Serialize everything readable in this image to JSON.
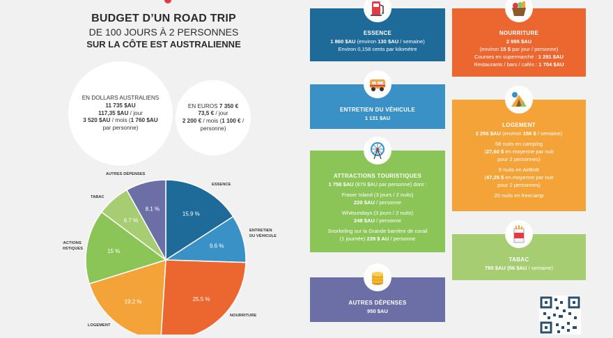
{
  "title": {
    "line1": "BUDGET D’UN ROAD TRIP",
    "line2": "DE 100 JOURS À 2 PERSONNES",
    "line3": "SUR LA CÔTE EST AUSTRALIENNE"
  },
  "aud_circle": {
    "heading": "EN DOLLARS AUSTRALIENS",
    "total": "11 735 $AU",
    "per_day_value": "117,35 $AU",
    "per_day_suffix": " / jour",
    "per_month_value": "3 520 $AU",
    "per_month_mid": " / mois (",
    "per_month_pp": "1 760 $AU",
    "per_person": "par personne)"
  },
  "eur_circle": {
    "heading": "EN EUROS",
    "total": "7 350 €",
    "per_day_value": "73,5 €",
    "per_day_suffix": " / jour",
    "per_month_value": "2 200 €",
    "per_month_mid": " / mois (",
    "per_month_pp": "1 100 €",
    "per_month_end": " /",
    "per_person": "personne)"
  },
  "chart_data": {
    "type": "pie",
    "categories": [
      "ESSENCE",
      "ENTRETIEN DU VÉHICULE",
      "NOURRITURE",
      "LOGEMENT",
      "ATTRACTIONS TOURISTIQUES",
      "TABAC",
      "AUTRES DÉPENSES"
    ],
    "values": [
      15.9,
      9.6,
      25.5,
      19.2,
      15,
      6.7,
      8.1
    ],
    "value_labels": [
      "15.9 %",
      "9.6 %",
      "25.5 %",
      "19.2 %",
      "15 %",
      "6.7 %",
      "8.1 %"
    ],
    "label_lines": [
      [
        "ESSENCE"
      ],
      [
        "ENTRETIEN",
        "DU VÉHICULE"
      ],
      [
        "NOURRITURE"
      ],
      [
        "LOGEMENT"
      ],
      [
        "ATTRACTIONS",
        "TOURISTIQUES"
      ],
      [
        "TABAC"
      ],
      [
        "AUTRES DÉPENSES"
      ]
    ],
    "colors": [
      "#1e6a99",
      "#3a91c6",
      "#ec6730",
      "#f4a338",
      "#8cc557",
      "#a6cd72",
      "#6b6fa6"
    ],
    "start": "top",
    "direction": "clockwise"
  },
  "cards": {
    "essence": {
      "title": "ESSENCE",
      "l1_a": "1 860 $AU",
      "l1_b": " (environ ",
      "l1_c": "130 $AU",
      "l1_d": " / semaine)",
      "l2": "Environ 0,158 cents par kilomètre"
    },
    "nourriture": {
      "title": "NOURRITURE",
      "l1": "2 995 $AU",
      "l2_a": "(environ ",
      "l2_b": "15 $",
      "l2_c": " par jour / personne)",
      "l3_a": "Courses en supermarché : ",
      "l3_b": "1 291 $AU",
      "l4_a": "Restaurants / bars / cafés : ",
      "l4_b": "1 704 $AU"
    },
    "entretien": {
      "title": "ENTRETIEN DU VÉHICULE",
      "l1": "1 131 $AU"
    },
    "logement": {
      "title": "LOGEMENT",
      "l1_a": "2 256 $AU",
      "l1_b": " (environ ",
      "l1_c": "156 $",
      "l1_d": " / semaine)",
      "l2": "68 nuits en camping",
      "l3_a": "(",
      "l3_b": "27,60 $",
      "l3_c": " en moyenne par nuit",
      "l4": "pour 2 personnes)",
      "l5": "8 nuits en AirBnB",
      "l6_a": "(",
      "l6_b": "47,25 $",
      "l6_c": " en moyenne par nuit",
      "l7": "pour 2 personnes)",
      "l8": "20 nuits en freecamp"
    },
    "attractions": {
      "title": "ATTRACTIONS TOURISTIQUES",
      "l1_a": "1 758 $AU",
      "l1_b": " (879 $AU par personne) dont :",
      "l2": "Fraser Island (3 jours / 2 nuits)",
      "l3_a": "220 $AU",
      "l3_b": " / personne",
      "l4": "Whitsundays (3 jours / 2 nuits)",
      "l5_a": "248 $AU",
      "l5_b": " / personne",
      "l6": "Snorkeling sur la Grande barrière de corail",
      "l7_a": "(1 journée) ",
      "l7_b": "239 $ AU",
      "l7_c": " / personne"
    },
    "tabac": {
      "title": "TABAC",
      "l1_a": "785 $AU",
      "l1_b": " (56 $AU",
      "l1_c": " / semaine)"
    },
    "autres": {
      "title": "AUTRES DÉPENSES",
      "l1": "950 $AU"
    }
  },
  "icons": [
    "gas-pump-icon",
    "groceries-icon",
    "van-icon",
    "tent-icon",
    "ferris-wheel-icon",
    "cigarette-pack-icon",
    "coins-icon",
    "qr-code-icon"
  ]
}
